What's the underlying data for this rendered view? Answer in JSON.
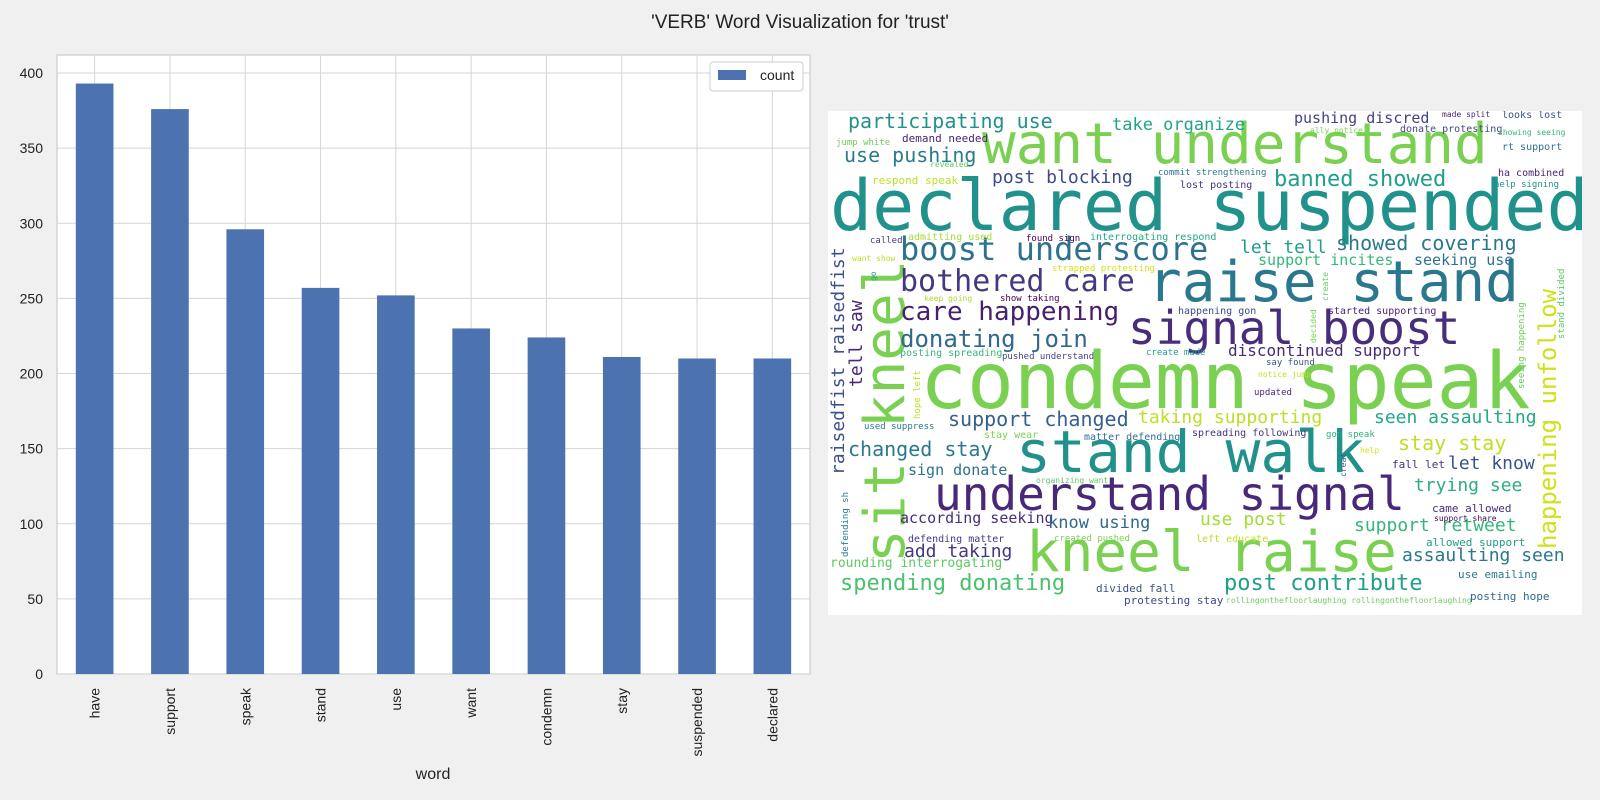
{
  "figure": {
    "title": "'VERB' Word Visualization for 'trust'",
    "background": "#f0f0f0"
  },
  "chart_data": [
    {
      "type": "bar",
      "categories": [
        "have",
        "support",
        "speak",
        "stand",
        "use",
        "want",
        "condemn",
        "stay",
        "suspended",
        "declared"
      ],
      "series": [
        {
          "name": "count",
          "values": [
            393,
            376,
            296,
            257,
            252,
            230,
            224,
            211,
            210,
            210
          ],
          "color": "#4c72b0"
        }
      ],
      "xlabel": "word",
      "ylabel": "",
      "ylim": [
        0,
        412
      ],
      "yticks": [
        0,
        50,
        100,
        150,
        200,
        250,
        300,
        350,
        400
      ],
      "grid": true,
      "legend": "top-right",
      "xtick_rotation": "vertical"
    }
  ],
  "wordcloud": {
    "background": "#ffffff",
    "words": [
      {
        "text": "declared suspended",
        "color": "#21918c"
      },
      {
        "text": "condemn speak",
        "color": "#7ad151"
      },
      {
        "text": "want understand",
        "color": "#7ad151"
      },
      {
        "text": "raise stand",
        "color": "#2a788e"
      },
      {
        "text": "stand walk",
        "color": "#21918c"
      },
      {
        "text": "kneel raise",
        "color": "#7ad151"
      },
      {
        "text": "understand signal",
        "color": "#482878"
      },
      {
        "text": "signal boost",
        "color": "#472d7b"
      },
      {
        "text": "sit kneel",
        "color": "#7ad151"
      },
      {
        "text": "boost underscore",
        "color": "#2c728e"
      },
      {
        "text": "bothered care",
        "color": "#443983"
      },
      {
        "text": "care happening",
        "color": "#481f70"
      },
      {
        "text": "donating join",
        "color": "#31688e"
      },
      {
        "text": "happening unfollow",
        "color": "#d0e11c"
      },
      {
        "text": "raisedfist raisedfist",
        "color": "#3b528b"
      },
      {
        "text": "tell saw",
        "color": "#482878"
      },
      {
        "text": "participating use",
        "color": "#21918c"
      },
      {
        "text": "use pushing",
        "color": "#287c8e"
      },
      {
        "text": "take organize",
        "color": "#20a486"
      },
      {
        "text": "pushing discred",
        "color": "#414487"
      },
      {
        "text": "post blocking",
        "color": "#3e4989"
      },
      {
        "text": "banned showed",
        "color": "#1f9e89"
      },
      {
        "text": "showed covering",
        "color": "#2a788e"
      },
      {
        "text": "let tell",
        "color": "#1fa088"
      },
      {
        "text": "support incites",
        "color": "#35b779"
      },
      {
        "text": "seeking use",
        "color": "#2c728e"
      },
      {
        "text": "discontinued support",
        "color": "#472c7a"
      },
      {
        "text": "support changed",
        "color": "#355f8d"
      },
      {
        "text": "taking supporting",
        "color": "#bddf26"
      },
      {
        "text": "seen assaulting",
        "color": "#22a884"
      },
      {
        "text": "changed stay",
        "color": "#2a788e"
      },
      {
        "text": "stay stay",
        "color": "#bddf26"
      },
      {
        "text": "let know",
        "color": "#3b528b"
      },
      {
        "text": "trying see",
        "color": "#2ab07f"
      },
      {
        "text": "sign donate",
        "color": "#2c728e"
      },
      {
        "text": "according seeking",
        "color": "#472d7b"
      },
      {
        "text": "know using",
        "color": "#31688e"
      },
      {
        "text": "use post",
        "color": "#a5db36"
      },
      {
        "text": "support retweet",
        "color": "#35b779"
      },
      {
        "text": "add taking",
        "color": "#453781"
      },
      {
        "text": "assaulting seen",
        "color": "#2a788e"
      },
      {
        "text": "spending donating",
        "color": "#4ac16d"
      },
      {
        "text": "post contribute",
        "color": "#1fa088"
      },
      {
        "text": "rounding interrogating",
        "color": "#5ec962"
      },
      {
        "text": "divided fall",
        "color": "#3b528b"
      },
      {
        "text": "protesting stay",
        "color": "#3e4989"
      },
      {
        "text": "posting hope",
        "color": "#31688e"
      },
      {
        "text": "use emailing",
        "color": "#287c8e"
      },
      {
        "text": "allowed support",
        "color": "#1f9e89"
      },
      {
        "text": "came allowed",
        "color": "#472d7b"
      },
      {
        "text": "fall let",
        "color": "#46337f"
      },
      {
        "text": "demand needed",
        "color": "#482475"
      },
      {
        "text": "jump white",
        "color": "#6ccd5a"
      },
      {
        "text": "respond speak",
        "color": "#bddf26"
      },
      {
        "text": "revealed",
        "color": "#5ec962"
      },
      {
        "text": "commit strengthening",
        "color": "#2a788e"
      },
      {
        "text": "lost posting",
        "color": "#46337f"
      },
      {
        "text": "made split",
        "color": "#482878"
      },
      {
        "text": "looks lost",
        "color": "#3b528b"
      },
      {
        "text": "ally notice",
        "color": "#7ad151"
      },
      {
        "text": "donate protesting",
        "color": "#3e4989"
      },
      {
        "text": "showing seeing",
        "color": "#35b779"
      },
      {
        "text": "rt support",
        "color": "#2c728e"
      },
      {
        "text": "ha combined",
        "color": "#481f70"
      },
      {
        "text": "help signing",
        "color": "#21918c"
      },
      {
        "text": "stand divided",
        "color": "#5ec962"
      },
      {
        "text": "admitting used",
        "color": "#a5db36"
      },
      {
        "text": "called",
        "color": "#443983"
      },
      {
        "text": "found sign",
        "color": "#440154"
      },
      {
        "text": "interrogating respond",
        "color": "#22a884"
      },
      {
        "text": "want show",
        "color": "#bddf26"
      },
      {
        "text": "strapped protesting",
        "color": "#d8e219"
      },
      {
        "text": "keep going",
        "color": "#a5db36"
      },
      {
        "text": "show taking",
        "color": "#440154"
      },
      {
        "text": "create",
        "color": "#5ec962"
      },
      {
        "text": "happening gon",
        "color": "#3e4989"
      },
      {
        "text": "started supporting",
        "color": "#481f70"
      },
      {
        "text": "decided",
        "color": "#7ad151"
      },
      {
        "text": "seeing happening",
        "color": "#6ccd5a"
      },
      {
        "text": "hope left",
        "color": "#bddf26"
      },
      {
        "text": "go",
        "color": "#20a486"
      },
      {
        "text": "posting spreading",
        "color": "#35b779"
      },
      {
        "text": "pushed understand",
        "color": "#414487"
      },
      {
        "text": "create made",
        "color": "#1f9e89"
      },
      {
        "text": "say found",
        "color": "#3b528b"
      },
      {
        "text": "notice jump",
        "color": "#bddf26"
      },
      {
        "text": "updated",
        "color": "#482878"
      },
      {
        "text": "used suppress",
        "color": "#2a788e"
      },
      {
        "text": "stay wear",
        "color": "#7ad151"
      },
      {
        "text": "matter defending",
        "color": "#2c728e"
      },
      {
        "text": "spreading following",
        "color": "#46337f"
      },
      {
        "text": "gon speak",
        "color": "#2ab07f"
      },
      {
        "text": "help",
        "color": "#d8e219"
      },
      {
        "text": "creat",
        "color": "#355f8d"
      },
      {
        "text": "organizing want",
        "color": "#5ec962"
      },
      {
        "text": "defending sh",
        "color": "#287c8e"
      },
      {
        "text": "support share",
        "color": "#440154"
      },
      {
        "text": "defending matter",
        "color": "#443983"
      },
      {
        "text": "created pushed",
        "color": "#7ad151"
      },
      {
        "text": "left educate",
        "color": "#bddf26"
      },
      {
        "text": "rollingonthefloorlaughing rollingonthefloorlaughing",
        "color": "#6ccd5a"
      }
    ]
  }
}
